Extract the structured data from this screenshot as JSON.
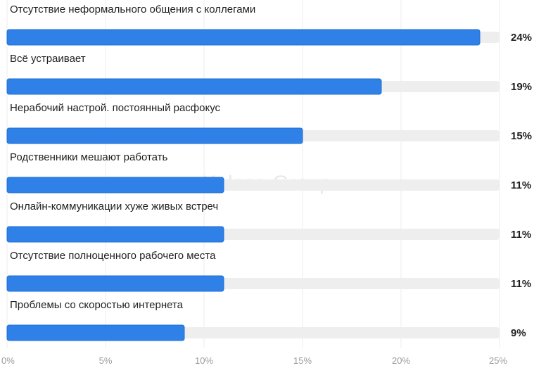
{
  "watermark": "Kelesa Group",
  "colors": {
    "bar": "#2f80e7",
    "bar_stroke": "#1f6fd6",
    "track": "#eeeeef",
    "grid": "#eeeeee",
    "label": "#1f1f1f",
    "tick": "#9b9b9b",
    "watermark": "#e9e9ea"
  },
  "chart_data": {
    "type": "bar",
    "orientation": "horizontal",
    "categories": [
      "Отсутствие неформального общения с коллегами",
      "Всё устраивает",
      "Нерабочий настрой. постоянный расфокус",
      "Родственники мешают работать",
      "Онлайн-коммуникации хуже живых встреч",
      "Отсутствие полноценного рабочего места",
      "Проблемы со скоростью интернета"
    ],
    "values": [
      24,
      19,
      15,
      11,
      11,
      11,
      9
    ],
    "value_labels": [
      "24%",
      "19%",
      "15%",
      "11%",
      "11%",
      "11%",
      "9%"
    ],
    "xlim": [
      0,
      25
    ],
    "xticks": [
      0,
      5,
      10,
      15,
      20,
      25
    ],
    "xtick_labels": [
      "0%",
      "5%",
      "10%",
      "15%",
      "20%",
      "25%"
    ],
    "grid": true,
    "legend": "none"
  }
}
